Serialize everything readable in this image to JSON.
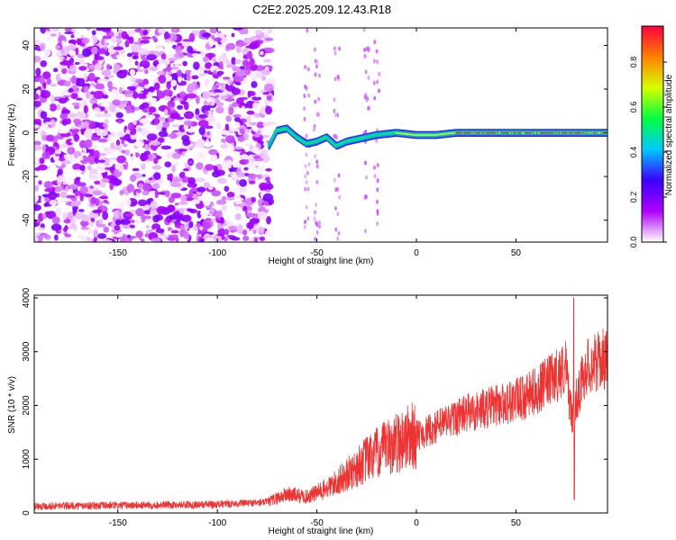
{
  "title": "C2E2.2025.209.12.43.R18",
  "chart_data": [
    {
      "type": "heatmap",
      "xlabel": "Height of straight line (km)",
      "ylabel": "Frequency (Hz)",
      "xlim": [
        -192,
        96
      ],
      "ylim": [
        -50,
        48
      ],
      "x_ticks": [
        -150,
        -100,
        -50,
        0,
        50
      ],
      "y_ticks": [
        -40,
        -20,
        0,
        20,
        40
      ],
      "colorbar": {
        "label": "Normalized spectral amplitude",
        "range": [
          0,
          0.96
        ],
        "ticks": [
          "0.0",
          "0.2",
          "0.4",
          "0.6",
          "0.8"
        ],
        "tick_values": [
          0,
          0.2,
          0.4,
          0.6,
          0.8
        ],
        "colors": [
          "#ffffff",
          "#b000ff",
          "#3a00ff",
          "#00c8ff",
          "#00ff40",
          "#d8ff00",
          "#ff8000",
          "#ff0040"
        ]
      },
      "noise_region_x": [
        -192,
        -73
      ],
      "signal_track": [
        {
          "x": -74,
          "y": -6
        },
        {
          "x": -70,
          "y": 1
        },
        {
          "x": -65,
          "y": 2
        },
        {
          "x": -60,
          "y": -2
        },
        {
          "x": -55,
          "y": -5
        },
        {
          "x": -50,
          "y": -4
        },
        {
          "x": -45,
          "y": -2
        },
        {
          "x": -40,
          "y": -6
        },
        {
          "x": -35,
          "y": -4
        },
        {
          "x": -30,
          "y": -3
        },
        {
          "x": -25,
          "y": -2
        },
        {
          "x": -20,
          "y": -1
        },
        {
          "x": -10,
          "y": 0
        },
        {
          "x": 0,
          "y": -1
        },
        {
          "x": 10,
          "y": -1
        },
        {
          "x": 20,
          "y": 0
        },
        {
          "x": 40,
          "y": 0
        },
        {
          "x": 60,
          "y": 0
        },
        {
          "x": 80,
          "y": 0
        },
        {
          "x": 96,
          "y": 0
        }
      ]
    },
    {
      "type": "line",
      "xlabel": "Height of straight line (km)",
      "ylabel": "SNR (10 * v/v)",
      "xlim": [
        -192,
        96
      ],
      "ylim": [
        0,
        4050
      ],
      "x_ticks": [
        -150,
        -100,
        -50,
        0,
        50
      ],
      "y_ticks": [
        0,
        1000,
        2000,
        3000,
        4000
      ],
      "series": [
        {
          "color": "#ee3333",
          "trend": [
            [
              -192,
              130
            ],
            [
              -150,
              140
            ],
            [
              -100,
              160
            ],
            [
              -75,
              200
            ],
            [
              -65,
              350
            ],
            [
              -55,
              300
            ],
            [
              -45,
              450
            ],
            [
              -35,
              700
            ],
            [
              -25,
              1000
            ],
            [
              -15,
              1200
            ],
            [
              -5,
              1400
            ],
            [
              5,
              1500
            ],
            [
              15,
              1700
            ],
            [
              25,
              1850
            ],
            [
              35,
              1950
            ],
            [
              45,
              2050
            ],
            [
              55,
              2150
            ],
            [
              65,
              2400
            ],
            [
              75,
              2700
            ],
            [
              78,
              1800
            ],
            [
              85,
              2700
            ],
            [
              96,
              2900
            ]
          ],
          "peak": [
            79,
            4000
          ],
          "dip": [
            79,
            250
          ]
        }
      ]
    }
  ]
}
